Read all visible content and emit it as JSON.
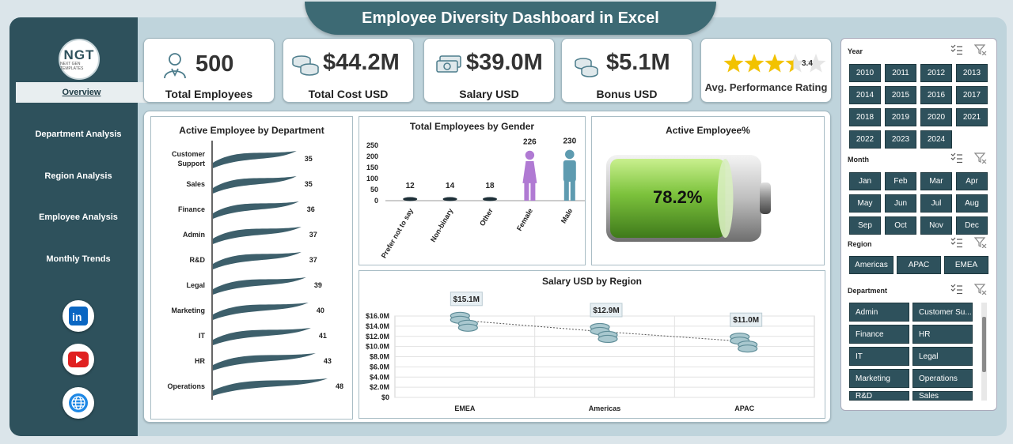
{
  "title": "Employee Diversity Dashboard in Excel",
  "logo": {
    "text": "NGT",
    "tagline": "NEXT GEN TEMPLATES"
  },
  "nav": [
    {
      "label": "Overview",
      "active": true
    },
    {
      "label": "Department  Analysis"
    },
    {
      "label": "Region  Analysis"
    },
    {
      "label": "Employee Analysis"
    },
    {
      "label": "Monthly Trends"
    }
  ],
  "social": [
    "linkedin-icon",
    "youtube-icon",
    "website-icon"
  ],
  "kpis": [
    {
      "value": "500",
      "label": "Total Employees",
      "icon": "employee-icon"
    },
    {
      "value": "$44.2M",
      "label": "Total Cost USD",
      "icon": "coins-icon"
    },
    {
      "value": "$39.0M",
      "label": "Salary USD",
      "icon": "cash-icon"
    },
    {
      "value": "$5.1M",
      "label": "Bonus USD",
      "icon": "coins-icon"
    }
  ],
  "rating": {
    "value": "3.4",
    "label": "Avg. Performance Rating",
    "stars": 3.4,
    "max": 5
  },
  "colors": {
    "teal": "#2e515c",
    "green": "#7cc23c",
    "silhouette": "#5e9bb0",
    "female": "#b07ad3"
  },
  "chart_data": [
    {
      "type": "bar",
      "title": "Active Employee by Department",
      "categories": [
        "Customer Support",
        "Sales",
        "Finance",
        "Admin",
        "R&D",
        "Legal",
        "Marketing",
        "IT",
        "HR",
        "Operations"
      ],
      "values": [
        35,
        35,
        36,
        37,
        37,
        39,
        40,
        41,
        43,
        48
      ]
    },
    {
      "type": "bar",
      "title": "Total Employees by Gender",
      "categories": [
        "Prefer not to say",
        "Non-binary",
        "Other",
        "Female",
        "Male"
      ],
      "values": [
        12,
        14,
        18,
        226,
        230
      ],
      "yticks": [
        "250",
        "200",
        "150",
        "100",
        "50",
        "0"
      ],
      "ylim": [
        0,
        250
      ]
    },
    {
      "type": "gauge",
      "title": "Active Employee%",
      "value": 78.2,
      "label": "78.2%"
    },
    {
      "type": "line",
      "title": "Salary USD by Region",
      "categories": [
        "EMEA",
        "Americas",
        "APAC"
      ],
      "values": [
        15.1,
        12.9,
        11.0
      ],
      "labels": [
        "$15.1M",
        "$12.9M",
        "$11.0M"
      ],
      "yticks": [
        "$16.0M",
        "$14.0M",
        "$12.0M",
        "$10.0M",
        "$8.0M",
        "$6.0M",
        "$4.0M",
        "$2.0M",
        "$0"
      ],
      "ylim": [
        0,
        16
      ]
    }
  ],
  "slicers": {
    "year": {
      "label": "Year",
      "items": [
        "2010",
        "2011",
        "2012",
        "2013",
        "2014",
        "2015",
        "2016",
        "2017",
        "2018",
        "2019",
        "2020",
        "2021",
        "2022",
        "2023",
        "2024"
      ]
    },
    "month": {
      "label": "Month",
      "items": [
        "Jan",
        "Feb",
        "Mar",
        "Apr",
        "May",
        "Jun",
        "Jul",
        "Aug",
        "Sep",
        "Oct",
        "Nov",
        "Dec"
      ]
    },
    "region": {
      "label": "Region",
      "items": [
        "Americas",
        "APAC",
        "EMEA"
      ]
    },
    "department": {
      "label": "Department",
      "items": [
        "Admin",
        "Customer Su...",
        "Finance",
        "HR",
        "IT",
        "Legal",
        "Marketing",
        "Operations",
        "R&D",
        "Sales"
      ]
    }
  }
}
